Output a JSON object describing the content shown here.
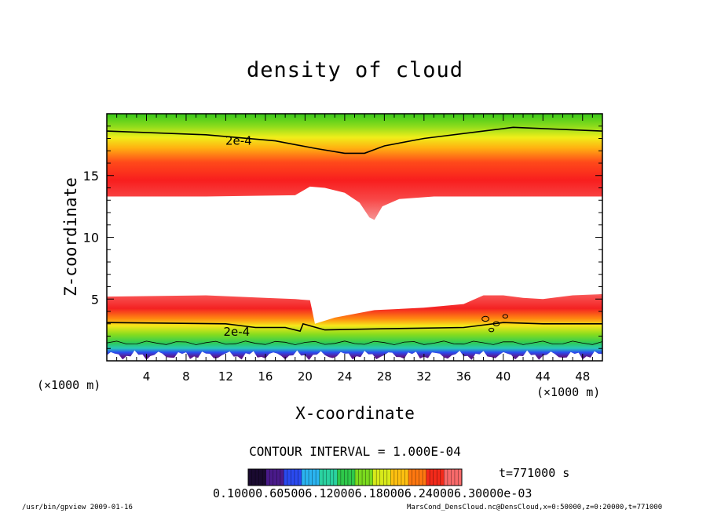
{
  "chart_data": {
    "type": "heatmap",
    "title": "density of cloud",
    "xlabel": "X-coordinate",
    "ylabel": "Z-coordinate",
    "x_unit_left": "(×1000 m)",
    "x_unit_right": "(×1000 m)",
    "xlim": [
      0,
      50
    ],
    "ylim": [
      0,
      20
    ],
    "x_ticks": [
      4,
      8,
      12,
      16,
      20,
      24,
      28,
      32,
      36,
      40,
      44,
      48
    ],
    "y_ticks": [
      5,
      10,
      15
    ],
    "contour_label_upper": "2e-4",
    "contour_label_lower": "2e-4",
    "contour_interval": "CONTOUR INTERVAL = 1.000E-04",
    "time_label": "t=771000 s",
    "colorbar_labels": "0.10000.605006.120006.180006.240006.30000e-03",
    "upper_layer_bottom": [
      [
        0,
        13.3
      ],
      [
        10,
        13.3
      ],
      [
        19,
        13.4
      ],
      [
        20.5,
        14.1
      ],
      [
        22,
        14.0
      ],
      [
        24,
        13.6
      ],
      [
        25.5,
        12.8
      ],
      [
        26.5,
        11.6
      ],
      [
        27,
        11.4
      ],
      [
        27.8,
        12.5
      ],
      [
        29.5,
        13.1
      ],
      [
        33,
        13.3
      ],
      [
        50,
        13.3
      ]
    ],
    "upper_contour_2e4": [
      [
        0,
        18.6
      ],
      [
        10,
        18.3
      ],
      [
        17,
        17.8
      ],
      [
        21,
        17.2
      ],
      [
        24,
        16.8
      ],
      [
        26,
        16.8
      ],
      [
        28,
        17.4
      ],
      [
        32,
        18.0
      ],
      [
        38,
        18.6
      ],
      [
        41,
        18.9
      ],
      [
        44,
        18.8
      ],
      [
        50,
        18.6
      ]
    ],
    "lower_layer_top": [
      [
        0,
        5.2
      ],
      [
        10,
        5.3
      ],
      [
        16,
        5.1
      ],
      [
        19,
        5.0
      ],
      [
        20.5,
        4.9
      ],
      [
        21,
        3.0
      ],
      [
        23,
        3.5
      ],
      [
        27,
        4.1
      ],
      [
        32,
        4.3
      ],
      [
        36,
        4.6
      ],
      [
        38,
        5.3
      ],
      [
        40,
        5.3
      ],
      [
        42,
        5.1
      ],
      [
        44,
        5.0
      ],
      [
        47,
        5.3
      ],
      [
        50,
        5.4
      ]
    ],
    "lower_contour_2e4": [
      [
        0,
        3.1
      ],
      [
        12,
        3.0
      ],
      [
        15,
        2.7
      ],
      [
        18,
        2.7
      ],
      [
        19.5,
        2.4
      ],
      [
        19.8,
        3.0
      ],
      [
        22,
        2.5
      ],
      [
        28,
        2.6
      ],
      [
        36,
        2.7
      ],
      [
        40,
        3.1
      ],
      [
        44,
        3.0
      ],
      [
        50,
        3.0
      ]
    ]
  },
  "footer": {
    "left": "/usr/bin/gpview   2009-01-16",
    "right": "MarsCond_DensCloud.nc@DensCloud,x=0:50000,z=0:20000,t=771000"
  }
}
